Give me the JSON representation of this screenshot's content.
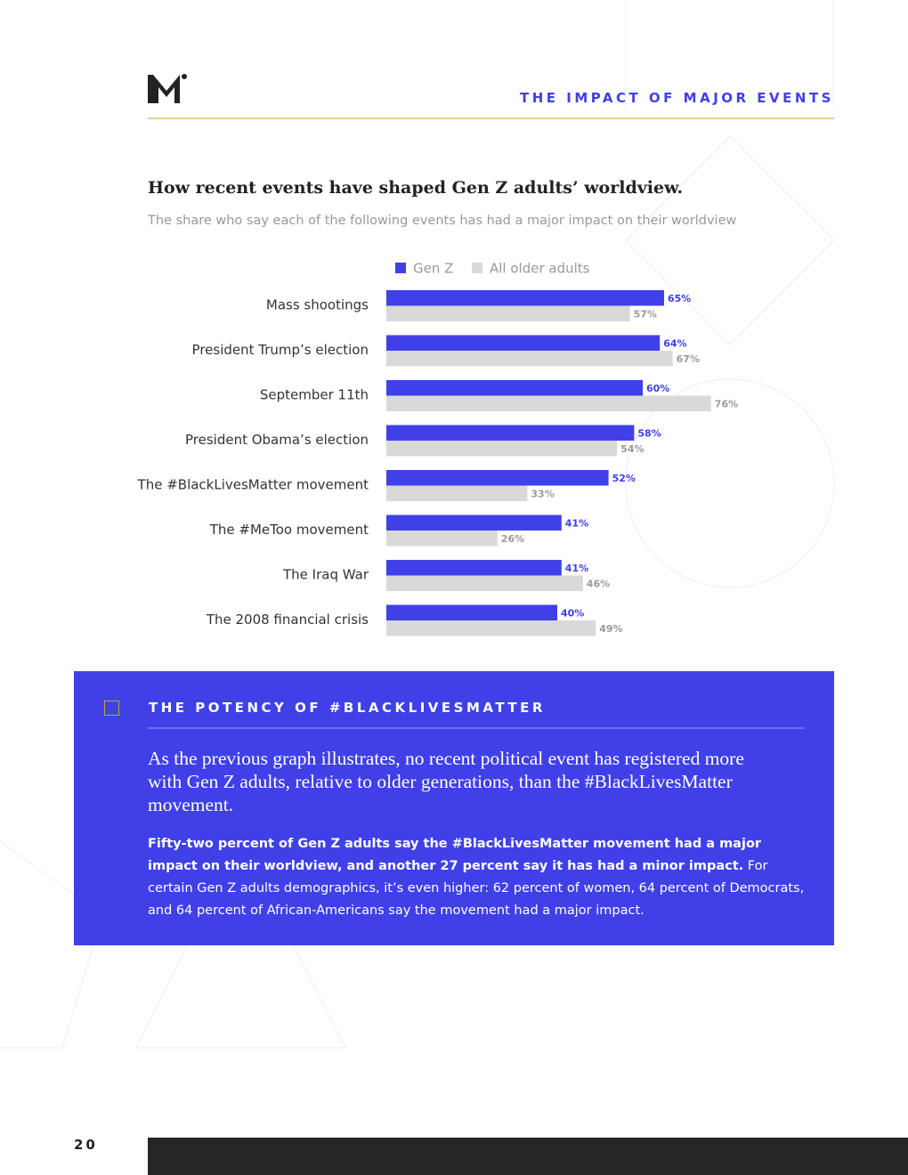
{
  "header": {
    "section": "THE IMPACT OF MAJOR EVENTS"
  },
  "chart_data": {
    "type": "bar",
    "orientation": "horizontal",
    "title": "How recent events have shaped Gen Z adults’ worldview.",
    "subtitle": "The share who say each of the following events has had a major impact on their worldview",
    "categories": [
      "Mass shootings",
      "President Trump’s election",
      "September 11th",
      "President Obama’s election",
      "The #BlackLivesMatter movement",
      "The #MeToo movement",
      "The Iraq War",
      "The 2008 financial crisis"
    ],
    "series": [
      {
        "name": "Gen Z",
        "color": "#4040e8",
        "values": [
          65,
          64,
          60,
          58,
          52,
          41,
          41,
          40
        ],
        "value_labels": [
          "65%",
          "64%",
          "60%",
          "58%",
          "52%",
          "41%",
          "41%",
          "40%"
        ]
      },
      {
        "name": "All older adults",
        "color": "#d9d9d9",
        "values": [
          57,
          67,
          76,
          54,
          33,
          26,
          46,
          49
        ],
        "value_labels": [
          "57%",
          "67%",
          "76%",
          "54%",
          "33%",
          "26%",
          "46%",
          "49%"
        ]
      }
    ]
  },
  "callout": {
    "heading": "THE POTENCY OF #BLACKLIVESMATTER",
    "lead": "As the previous graph illustrates, no recent political event has registered more with Gen Z adults, relative to older generations, than the #BlackLivesMatter movement.",
    "body_bold": "Fifty-two percent of Gen Z adults say the #BlackLivesMatter movement had a major impact on their worldview, and another 27 percent say it has had a minor impact.",
    "body_rest": " For certain Gen Z adults demographics, it’s even higher: 62 percent of women, 64 percent of Democrats, and 64 percent of African-Americans say the movement had a major impact."
  },
  "footer": {
    "page_number": "20"
  }
}
